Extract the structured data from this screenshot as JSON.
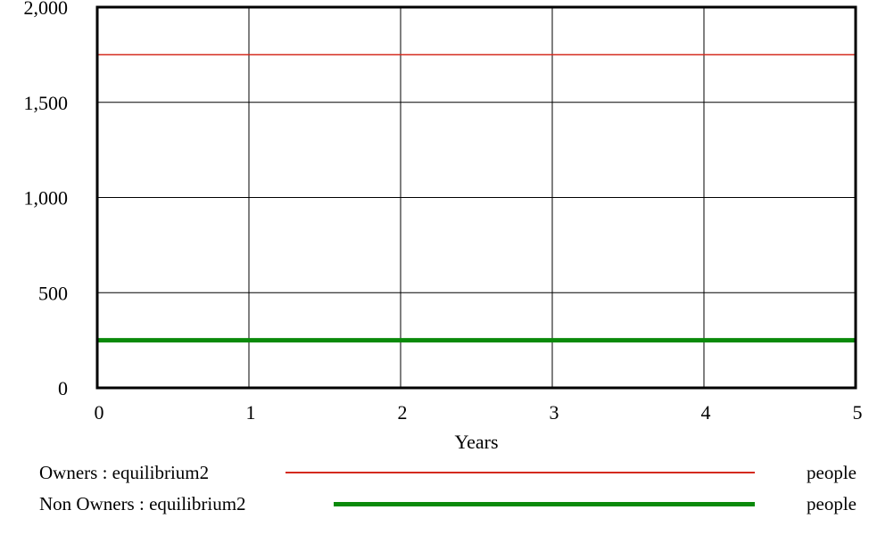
{
  "chart_data": {
    "type": "line",
    "xlabel": "Years",
    "ylabel": "",
    "xlim": [
      0,
      5
    ],
    "ylim": [
      0,
      2000
    ],
    "x_ticks": [
      0,
      1,
      2,
      3,
      4,
      5
    ],
    "x_tick_labels": [
      "0",
      "1",
      "2",
      "3",
      "4",
      "5"
    ],
    "y_ticks": [
      0,
      500,
      1000,
      1500,
      2000
    ],
    "y_tick_labels": [
      "0",
      "500",
      "1,000",
      "1,500",
      "2,000"
    ],
    "grid": true,
    "series": [
      {
        "name": "Owners : equilibrium2",
        "unit": "people",
        "color": "#d42a1e",
        "x": [
          0,
          5
        ],
        "values": [
          1750,
          1750
        ]
      },
      {
        "name": "Non Owners : equilibrium2",
        "unit": "people",
        "color": "#0a8a0a",
        "x": [
          0,
          5
        ],
        "values": [
          250,
          250
        ]
      }
    ]
  },
  "legend": [
    {
      "label": "Owners : equilibrium2",
      "unit": "people"
    },
    {
      "label": "Non Owners : equilibrium2",
      "unit": "people"
    }
  ]
}
